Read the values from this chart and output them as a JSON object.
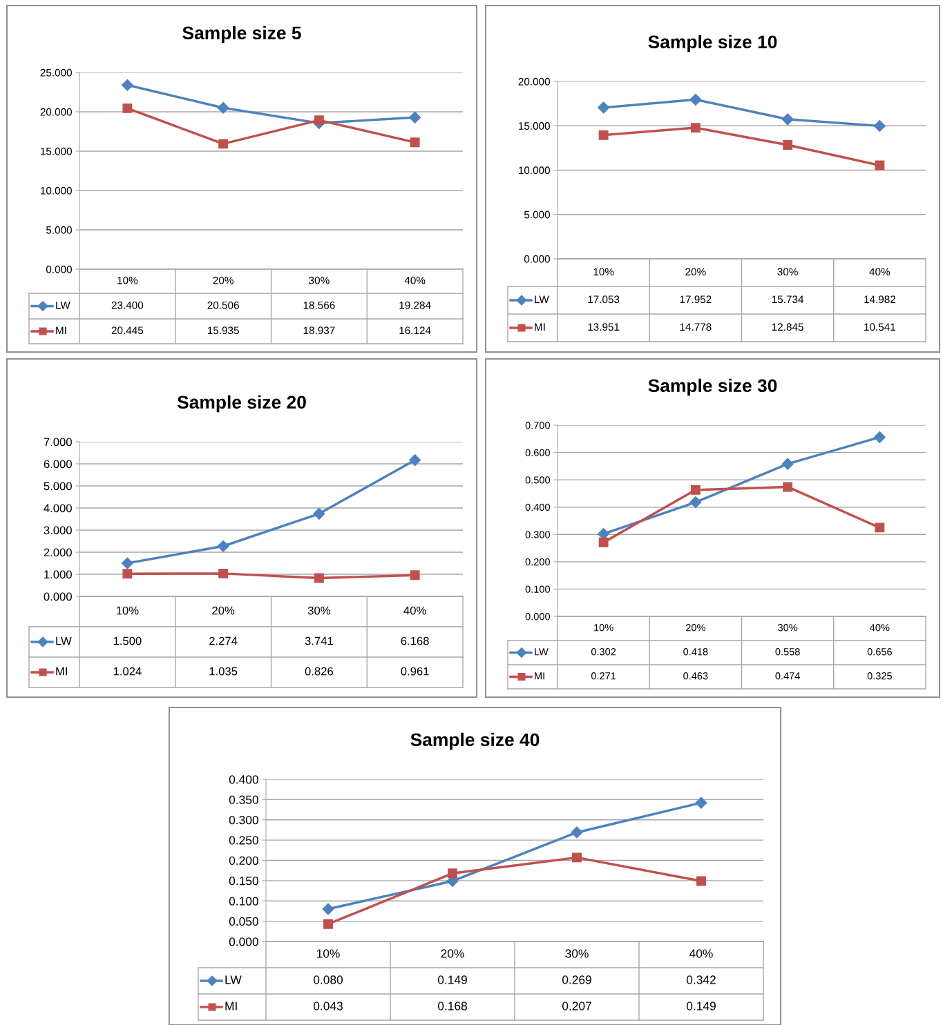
{
  "chart_data": [
    {
      "type": "line",
      "title": "Sample size 5",
      "legend": "bottom left",
      "categories": [
        "10%",
        "20%",
        "30%",
        "40%"
      ],
      "grid": "y",
      "ylim": [
        0,
        25
      ],
      "yticks": [
        {
          "value": 0,
          "label": "0.000"
        },
        {
          "value": 5,
          "label": "5.000"
        },
        {
          "value": 10,
          "label": "10.000"
        },
        {
          "value": 15,
          "label": "15.000"
        },
        {
          "value": 20,
          "label": "20.000"
        },
        {
          "value": 25,
          "label": "25.000"
        }
      ],
      "series": [
        {
          "name": "LW",
          "color": "#4f81bd",
          "marker": "diamond",
          "values": [
            23.4,
            20.506,
            18.566,
            19.284
          ],
          "value_labels": [
            "23.400",
            "20.506",
            "18.566",
            "19.284"
          ]
        },
        {
          "name": "MI",
          "color": "#c0504d",
          "marker": "square",
          "values": [
            20.445,
            15.935,
            18.937,
            16.124
          ],
          "value_labels": [
            "20.445",
            "15.935",
            "18.937",
            "16.124"
          ]
        }
      ]
    },
    {
      "type": "line",
      "title": "Sample size 10",
      "legend": "bottom left",
      "categories": [
        "10%",
        "20%",
        "30%",
        "40%"
      ],
      "grid": "y",
      "ylim": [
        0,
        20
      ],
      "yticks": [
        {
          "value": 0,
          "label": "0.000"
        },
        {
          "value": 5,
          "label": "5.000"
        },
        {
          "value": 10,
          "label": "10.000"
        },
        {
          "value": 15,
          "label": "15.000"
        },
        {
          "value": 20,
          "label": "20.000"
        }
      ],
      "series": [
        {
          "name": "LW",
          "color": "#4f81bd",
          "marker": "diamond",
          "values": [
            17.053,
            17.952,
            15.734,
            14.982
          ],
          "value_labels": [
            "17.053",
            "17.952",
            "15.734",
            "14.982"
          ]
        },
        {
          "name": "MI",
          "color": "#c0504d",
          "marker": "square",
          "values": [
            13.951,
            14.778,
            12.845,
            10.541
          ],
          "value_labels": [
            "13.951",
            "14.778",
            "12.845",
            "10.541"
          ]
        }
      ]
    },
    {
      "type": "line",
      "title": "Sample size 20",
      "legend": "bottom left",
      "categories": [
        "10%",
        "20%",
        "30%",
        "40%"
      ],
      "grid": "y",
      "ylim": [
        0,
        7
      ],
      "yticks": [
        {
          "value": 0,
          "label": "0.000"
        },
        {
          "value": 1,
          "label": "1.000"
        },
        {
          "value": 2,
          "label": "2.000"
        },
        {
          "value": 3,
          "label": "3.000"
        },
        {
          "value": 4,
          "label": "4.000"
        },
        {
          "value": 5,
          "label": "5.000"
        },
        {
          "value": 6,
          "label": "6.000"
        },
        {
          "value": 7,
          "label": "7.000"
        }
      ],
      "series": [
        {
          "name": "LW",
          "color": "#4f81bd",
          "marker": "diamond",
          "values": [
            1.5,
            2.274,
            3.741,
            6.168
          ],
          "value_labels": [
            "1.500",
            "2.274",
            "3.741",
            "6.168"
          ]
        },
        {
          "name": "MI",
          "color": "#c0504d",
          "marker": "square",
          "values": [
            1.024,
            1.035,
            0.826,
            0.961
          ],
          "value_labels": [
            "1.024",
            "1.035",
            "0.826",
            "0.961"
          ]
        }
      ]
    },
    {
      "type": "line",
      "title": "Sample size 30",
      "legend": "bottom left",
      "categories": [
        "10%",
        "20%",
        "30%",
        "40%"
      ],
      "grid": "y",
      "ylim": [
        0,
        0.7
      ],
      "yticks": [
        {
          "value": 0,
          "label": "0.000"
        },
        {
          "value": 0.1,
          "label": "0.100"
        },
        {
          "value": 0.2,
          "label": "0.200"
        },
        {
          "value": 0.3,
          "label": "0.300"
        },
        {
          "value": 0.4,
          "label": "0.400"
        },
        {
          "value": 0.5,
          "label": "0.500"
        },
        {
          "value": 0.6,
          "label": "0.600"
        },
        {
          "value": 0.7,
          "label": "0.700"
        }
      ],
      "series": [
        {
          "name": "LW",
          "color": "#4f81bd",
          "marker": "diamond",
          "values": [
            0.302,
            0.418,
            0.558,
            0.656
          ],
          "value_labels": [
            "0.302",
            "0.418",
            "0.558",
            "0.656"
          ]
        },
        {
          "name": "MI",
          "color": "#c0504d",
          "marker": "square",
          "values": [
            0.271,
            0.463,
            0.474,
            0.325
          ],
          "value_labels": [
            "0.271",
            "0.463",
            "0.474",
            "0.325"
          ]
        }
      ]
    },
    {
      "type": "line",
      "title": "Sample size 40",
      "legend": "bottom left",
      "categories": [
        "10%",
        "20%",
        "30%",
        "40%"
      ],
      "grid": "y",
      "ylim": [
        0,
        0.4
      ],
      "yticks": [
        {
          "value": 0,
          "label": "0.000"
        },
        {
          "value": 0.05,
          "label": "0.050"
        },
        {
          "value": 0.1,
          "label": "0.100"
        },
        {
          "value": 0.15,
          "label": "0.150"
        },
        {
          "value": 0.2,
          "label": "0.200"
        },
        {
          "value": 0.25,
          "label": "0.250"
        },
        {
          "value": 0.3,
          "label": "0.300"
        },
        {
          "value": 0.35,
          "label": "0.350"
        },
        {
          "value": 0.4,
          "label": "0.400"
        }
      ],
      "series": [
        {
          "name": "LW",
          "color": "#4f81bd",
          "marker": "diamond",
          "values": [
            0.08,
            0.149,
            0.269,
            0.342
          ],
          "value_labels": [
            "0.080",
            "0.149",
            "0.269",
            "0.342"
          ]
        },
        {
          "name": "MI",
          "color": "#c0504d",
          "marker": "square",
          "values": [
            0.043,
            0.168,
            0.207,
            0.149
          ],
          "value_labels": [
            "0.043",
            "0.168",
            "0.207",
            "0.149"
          ]
        }
      ]
    }
  ]
}
